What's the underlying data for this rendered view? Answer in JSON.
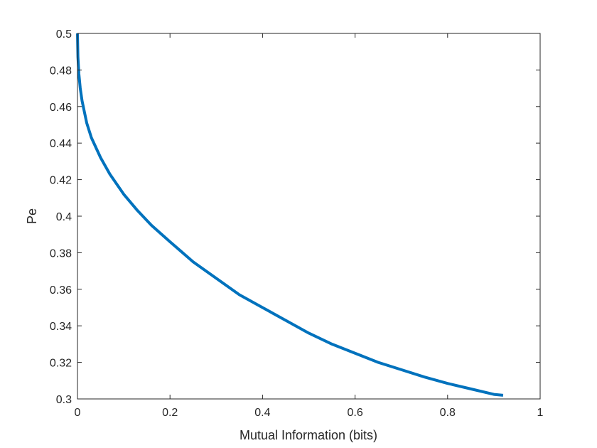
{
  "chart_data": {
    "type": "line",
    "title": "",
    "xlabel": "Mutual Information (bits)",
    "ylabel": "Pe",
    "xlim": [
      0,
      1
    ],
    "ylim": [
      0.3,
      0.5
    ],
    "x_ticks": [
      0,
      0.2,
      0.4,
      0.6,
      0.8,
      1
    ],
    "x_tick_labels": [
      "0",
      "0.2",
      "0.4",
      "0.6",
      "0.8",
      "1"
    ],
    "y_ticks": [
      0.3,
      0.32,
      0.34,
      0.36,
      0.38,
      0.4,
      0.42,
      0.44,
      0.46,
      0.48,
      0.5
    ],
    "y_tick_labels": [
      "0.3",
      "0.32",
      "0.34",
      "0.36",
      "0.38",
      "0.4",
      "0.42",
      "0.44",
      "0.46",
      "0.48",
      "0.5"
    ],
    "grid": false,
    "legend": "none",
    "series": [
      {
        "color": "#0072BD",
        "x": [
          0,
          0.001,
          0.003,
          0.006,
          0.01,
          0.02,
          0.03,
          0.05,
          0.07,
          0.1,
          0.13,
          0.16,
          0.2,
          0.25,
          0.3,
          0.35,
          0.4,
          0.45,
          0.5,
          0.55,
          0.6,
          0.65,
          0.7,
          0.75,
          0.8,
          0.85,
          0.9,
          0.92
        ],
        "y": [
          0.5,
          0.487,
          0.478,
          0.47,
          0.463,
          0.451,
          0.443,
          0.432,
          0.423,
          0.412,
          0.403,
          0.395,
          0.386,
          0.375,
          0.366,
          0.357,
          0.35,
          0.343,
          0.336,
          0.33,
          0.325,
          0.32,
          0.316,
          0.312,
          0.3085,
          0.3055,
          0.3025,
          0.302
        ]
      }
    ]
  }
}
